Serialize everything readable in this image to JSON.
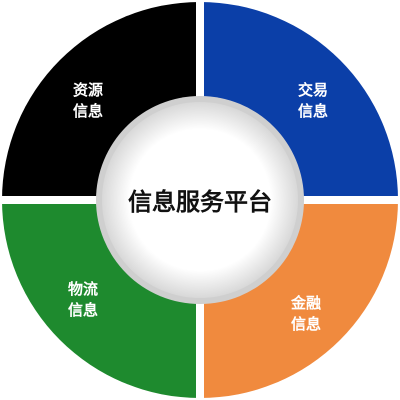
{
  "center": {
    "title": "信息服务平台"
  },
  "quadrants": [
    {
      "id": "resource",
      "line1": "资源",
      "line2": "信息",
      "color": "#000000"
    },
    {
      "id": "trade",
      "line1": "交易",
      "line2": "信息",
      "color": "#0b3fa8"
    },
    {
      "id": "finance",
      "line1": "金融",
      "line2": "信息",
      "color": "#f08a3e"
    },
    {
      "id": "logistics",
      "line1": "物流",
      "line2": "信息",
      "color": "#1e8a2e"
    }
  ],
  "colors": {
    "ring_stroke": "#ffffff",
    "center_fill": "#ffffff",
    "center_shadow": "#bfbfbf"
  }
}
